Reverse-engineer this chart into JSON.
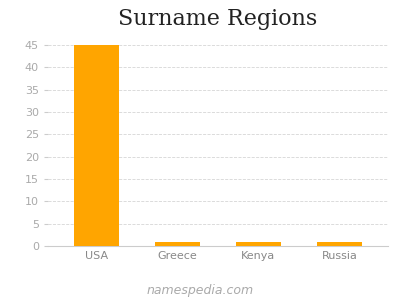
{
  "title": "Surname Regions",
  "categories": [
    "USA",
    "Greece",
    "Kenya",
    "Russia"
  ],
  "values": [
    45,
    1,
    1,
    1
  ],
  "bar_color": "#FFA500",
  "background_color": "#ffffff",
  "ylim": [
    0,
    47
  ],
  "yticks": [
    0,
    5,
    10,
    15,
    20,
    25,
    30,
    35,
    40,
    45
  ],
  "grid_color": "#cccccc",
  "footer_text": "namespedia.com",
  "title_fontsize": 16,
  "tick_fontsize": 8,
  "footer_fontsize": 9,
  "tick_color": "#aaaaaa"
}
